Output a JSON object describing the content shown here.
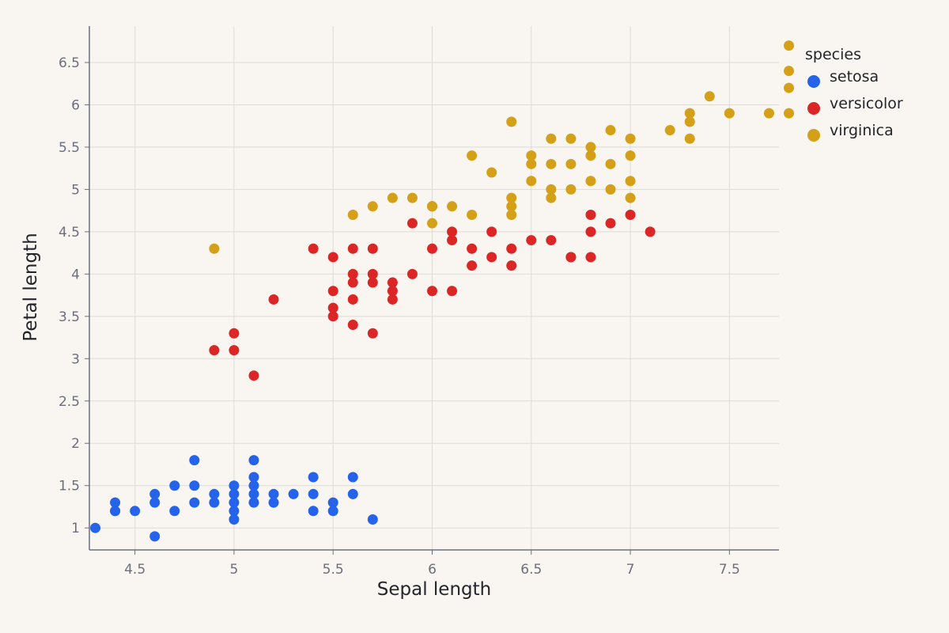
{
  "colors": {
    "background": "#f9f6f1",
    "grid": "#dedbd6",
    "axis": "#6b6f7d",
    "setosa": "#2563eb",
    "versicolor": "#dc2626",
    "virginica": "#d4a017"
  },
  "chart_data": {
    "type": "scatter",
    "xlabel": "Sepal length",
    "ylabel": "Petal length",
    "xlim": [
      4.27,
      7.75
    ],
    "ylim": [
      0.74,
      6.93
    ],
    "x_ticks": [
      4.5,
      5,
      5.5,
      6,
      6.5,
      7,
      7.5
    ],
    "x_tick_labels": [
      "4.5",
      "5",
      "5.5",
      "6",
      "6.5",
      "7",
      "7.5"
    ],
    "y_ticks": [
      1,
      1.5,
      2,
      2.5,
      3,
      3.5,
      4,
      4.5,
      5,
      5.5,
      6,
      6.5
    ],
    "y_tick_labels": [
      "1",
      "1.5",
      "2",
      "2.5",
      "3",
      "3.5",
      "4",
      "4.5",
      "5",
      "5.5",
      "6",
      "6.5"
    ],
    "grid": true,
    "legend": {
      "title": "species",
      "placement": "top-right"
    },
    "series": [
      {
        "name": "setosa",
        "color": "#2563eb",
        "points": [
          [
            4.3,
            1.0
          ],
          [
            4.4,
            1.2
          ],
          [
            4.4,
            1.3
          ],
          [
            4.4,
            1.2
          ],
          [
            4.5,
            1.2
          ],
          [
            4.6,
            0.9
          ],
          [
            4.6,
            1.3
          ],
          [
            4.6,
            1.4
          ],
          [
            4.7,
            1.2
          ],
          [
            4.7,
            1.5
          ],
          [
            4.8,
            1.3
          ],
          [
            4.8,
            1.5
          ],
          [
            4.8,
            1.8
          ],
          [
            4.9,
            1.3
          ],
          [
            4.9,
            1.4
          ],
          [
            5.0,
            1.1
          ],
          [
            5.0,
            1.2
          ],
          [
            5.0,
            1.3
          ],
          [
            5.0,
            1.4
          ],
          [
            5.0,
            1.5
          ],
          [
            5.1,
            1.3
          ],
          [
            5.1,
            1.4
          ],
          [
            5.1,
            1.5
          ],
          [
            5.1,
            1.6
          ],
          [
            5.1,
            1.8
          ],
          [
            5.2,
            1.3
          ],
          [
            5.2,
            1.4
          ],
          [
            5.3,
            1.4
          ],
          [
            5.4,
            1.2
          ],
          [
            5.4,
            1.4
          ],
          [
            5.4,
            1.6
          ],
          [
            5.5,
            1.2
          ],
          [
            5.5,
            1.3
          ],
          [
            5.6,
            1.4
          ],
          [
            5.6,
            1.6
          ],
          [
            5.7,
            1.1
          ]
        ]
      },
      {
        "name": "versicolor",
        "color": "#dc2626",
        "points": [
          [
            4.9,
            3.1
          ],
          [
            5.0,
            3.1
          ],
          [
            5.0,
            3.3
          ],
          [
            5.1,
            2.8
          ],
          [
            5.2,
            3.7
          ],
          [
            5.4,
            4.3
          ],
          [
            5.5,
            4.2
          ],
          [
            5.5,
            3.8
          ],
          [
            5.5,
            3.6
          ],
          [
            5.5,
            3.5
          ],
          [
            5.6,
            4.3
          ],
          [
            5.6,
            4.0
          ],
          [
            5.6,
            3.9
          ],
          [
            5.6,
            3.7
          ],
          [
            5.6,
            3.4
          ],
          [
            5.7,
            4.3
          ],
          [
            5.7,
            4.0
          ],
          [
            5.7,
            3.9
          ],
          [
            5.7,
            3.3
          ],
          [
            5.8,
            3.9
          ],
          [
            5.8,
            3.8
          ],
          [
            5.8,
            3.7
          ],
          [
            5.9,
            4.6
          ],
          [
            5.9,
            4.0
          ],
          [
            6.0,
            4.8
          ],
          [
            6.0,
            4.3
          ],
          [
            6.0,
            3.8
          ],
          [
            6.1,
            4.5
          ],
          [
            6.1,
            4.4
          ],
          [
            6.1,
            3.8
          ],
          [
            6.2,
            4.3
          ],
          [
            6.2,
            4.1
          ],
          [
            6.3,
            4.5
          ],
          [
            6.3,
            4.2
          ],
          [
            6.4,
            4.3
          ],
          [
            6.4,
            4.1
          ],
          [
            6.5,
            4.4
          ],
          [
            6.6,
            4.4
          ],
          [
            6.7,
            4.2
          ],
          [
            6.7,
            4.2
          ],
          [
            6.8,
            4.7
          ],
          [
            6.8,
            4.5
          ],
          [
            6.8,
            4.2
          ],
          [
            6.9,
            4.6
          ],
          [
            7.0,
            4.7
          ],
          [
            7.1,
            4.5
          ]
        ]
      },
      {
        "name": "virginica",
        "color": "#d4a017",
        "points": [
          [
            4.9,
            4.3
          ],
          [
            5.6,
            4.7
          ],
          [
            5.7,
            4.8
          ],
          [
            5.8,
            4.9
          ],
          [
            5.9,
            4.9
          ],
          [
            6.0,
            4.8
          ],
          [
            6.0,
            4.6
          ],
          [
            6.1,
            4.8
          ],
          [
            6.2,
            5.4
          ],
          [
            6.2,
            4.7
          ],
          [
            6.3,
            5.2
          ],
          [
            6.4,
            5.8
          ],
          [
            6.4,
            4.9
          ],
          [
            6.4,
            4.8
          ],
          [
            6.4,
            4.7
          ],
          [
            6.5,
            5.4
          ],
          [
            6.5,
            5.3
          ],
          [
            6.5,
            5.1
          ],
          [
            6.6,
            5.6
          ],
          [
            6.6,
            5.3
          ],
          [
            6.6,
            5.0
          ],
          [
            6.6,
            4.9
          ],
          [
            6.7,
            5.6
          ],
          [
            6.7,
            5.3
          ],
          [
            6.7,
            5.0
          ],
          [
            6.8,
            5.5
          ],
          [
            6.8,
            5.4
          ],
          [
            6.8,
            5.1
          ],
          [
            6.9,
            5.7
          ],
          [
            6.9,
            5.3
          ],
          [
            6.9,
            5.0
          ],
          [
            7.0,
            5.6
          ],
          [
            7.0,
            5.4
          ],
          [
            7.0,
            5.1
          ],
          [
            7.0,
            4.9
          ],
          [
            7.2,
            5.7
          ],
          [
            7.3,
            5.9
          ],
          [
            7.3,
            5.8
          ],
          [
            7.3,
            5.6
          ],
          [
            7.4,
            6.1
          ],
          [
            7.5,
            5.9
          ],
          [
            7.7,
            5.9
          ],
          [
            7.8,
            6.2
          ],
          [
            7.8,
            6.4
          ],
          [
            7.8,
            5.9
          ],
          [
            7.8,
            6.7
          ]
        ]
      }
    ]
  }
}
